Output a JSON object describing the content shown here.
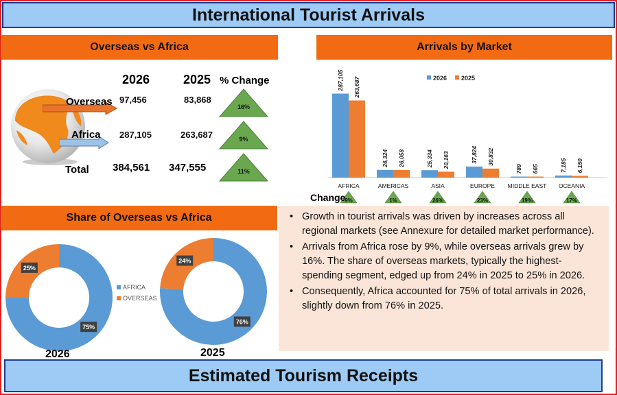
{
  "title": "International Tourist Arrivals",
  "footer_title": "Estimated Tourism Receipts",
  "colors": {
    "series_2026": "#5b9bd5",
    "series_2025": "#ed7d31",
    "header_orange": "#f26b12",
    "title_blue": "#9dcbf5",
    "triangle_green": "#6aa84f"
  },
  "overseas_vs_africa": {
    "header": "Overseas vs Africa",
    "col_2026": "2026",
    "col_2025": "2025",
    "col_change": "% Change",
    "rows": [
      {
        "label": "Overseas",
        "v2026": "97,456",
        "v2025": "83,868",
        "change": "16%"
      },
      {
        "label": "Africa",
        "v2026": "287,105",
        "v2025": "263,687",
        "change": "9%"
      },
      {
        "label": "Total",
        "v2026": "384,561",
        "v2025": "347,555",
        "change": "11%"
      }
    ]
  },
  "market": {
    "header": "Arrivals by Market",
    "change_label": "Change"
  },
  "share": {
    "header": "Share of Overseas vs Africa",
    "year_2026": "2026",
    "year_2025": "2025",
    "legend_africa": "AFRICA",
    "legend_overseas": "OVERSEAS"
  },
  "bullets": [
    "Growth in tourist arrivals was driven by increases across all regional markets (see Annexure for detailed market performance).",
    "Arrivals from Africa rose by 9%, while overseas arrivals grew by 16%. The share of overseas markets, typically the highest-spending segment, edged up from 24% in 2025 to 25% in 2026.",
    "Consequently, Africa accounted for 75% of total arrivals in 2026, slightly down from 76% in 2025."
  ],
  "chart_data": [
    {
      "type": "bar",
      "title": "Arrivals by Market",
      "categories": [
        "AFRICA",
        "AMERICAS",
        "ASIA",
        "EUROPE",
        "MIDDLE EAST",
        "OCEANIA"
      ],
      "series": [
        {
          "name": "2026",
          "values": [
            287105,
            26324,
            25334,
            37824,
            789,
            7185
          ],
          "labels": [
            "287,105",
            "26,324",
            "25,334",
            "37,824",
            "789",
            "7,185"
          ]
        },
        {
          "name": "2025",
          "values": [
            263687,
            26058,
            20163,
            30832,
            665,
            6150
          ],
          "labels": [
            "263,687",
            "26,058",
            "20,163",
            "30,832",
            "665",
            "6,150"
          ]
        }
      ],
      "change": [
        "9%",
        "1%",
        "26%",
        "23%",
        "19%",
        "17%"
      ],
      "legend": "top-right",
      "grid": false
    },
    {
      "type": "pie",
      "title": "2026",
      "categories": [
        "AFRICA",
        "OVERSEAS"
      ],
      "values": [
        75,
        25
      ],
      "labels": [
        "75%",
        "25%"
      ]
    },
    {
      "type": "pie",
      "title": "2025",
      "categories": [
        "AFRICA",
        "OVERSEAS"
      ],
      "values": [
        76,
        24
      ],
      "labels": [
        "76%",
        "24%"
      ]
    }
  ]
}
